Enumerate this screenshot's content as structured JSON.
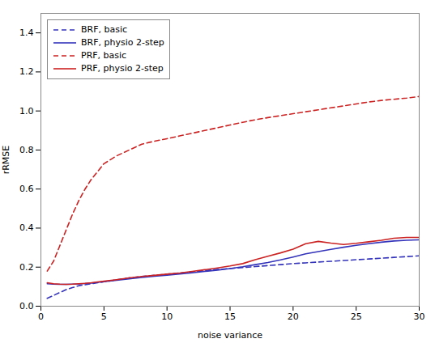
{
  "chart_data": {
    "type": "line",
    "x": [
      0.5,
      1,
      1.5,
      2,
      2.5,
      3,
      3.5,
      4,
      4.5,
      5,
      6,
      7,
      8,
      9,
      10,
      11,
      12,
      13,
      14,
      15,
      16,
      17,
      18,
      19,
      20,
      21,
      22,
      23,
      24,
      25,
      26,
      27,
      28,
      29,
      30
    ],
    "series": [
      {
        "name": "BRF, basic",
        "color": "#3333bb",
        "line_style": "dashed",
        "values": [
          0.04,
          0.055,
          0.07,
          0.085,
          0.095,
          0.105,
          0.11,
          0.115,
          0.12,
          0.125,
          0.135,
          0.145,
          0.152,
          0.158,
          0.164,
          0.17,
          0.176,
          0.182,
          0.188,
          0.193,
          0.198,
          0.203,
          0.208,
          0.213,
          0.218,
          0.222,
          0.226,
          0.23,
          0.234,
          0.238,
          0.242,
          0.246,
          0.25,
          0.254,
          0.258
        ]
      },
      {
        "name": "BRF, physio 2-step",
        "color": "#3333bb",
        "line_style": "solid",
        "values": [
          0.115,
          0.113,
          0.112,
          0.112,
          0.113,
          0.114,
          0.116,
          0.118,
          0.122,
          0.126,
          0.133,
          0.14,
          0.147,
          0.153,
          0.159,
          0.165,
          0.171,
          0.178,
          0.185,
          0.193,
          0.202,
          0.213,
          0.224,
          0.237,
          0.252,
          0.268,
          0.28,
          0.291,
          0.302,
          0.312,
          0.32,
          0.328,
          0.334,
          0.338,
          0.34
        ]
      },
      {
        "name": "PRF, basic",
        "color": "#cc2222",
        "line_style": "dashed",
        "values": [
          0.18,
          0.23,
          0.31,
          0.39,
          0.47,
          0.54,
          0.6,
          0.65,
          0.69,
          0.73,
          0.77,
          0.8,
          0.83,
          0.845,
          0.858,
          0.872,
          0.886,
          0.9,
          0.914,
          0.928,
          0.942,
          0.955,
          0.966,
          0.976,
          0.986,
          0.996,
          1.006,
          1.016,
          1.026,
          1.036,
          1.046,
          1.054,
          1.06,
          1.066,
          1.074
        ]
      },
      {
        "name": "PRF, physio 2-step",
        "color": "#cc2222",
        "line_style": "solid",
        "values": [
          0.12,
          0.115,
          0.113,
          0.112,
          0.113,
          0.115,
          0.117,
          0.12,
          0.124,
          0.128,
          0.136,
          0.145,
          0.152,
          0.158,
          0.164,
          0.17,
          0.178,
          0.187,
          0.196,
          0.206,
          0.218,
          0.238,
          0.256,
          0.273,
          0.292,
          0.32,
          0.332,
          0.323,
          0.316,
          0.322,
          0.33,
          0.338,
          0.348,
          0.352,
          0.352
        ]
      }
    ],
    "xlabel": "noise variance",
    "ylabel": "rRMSE",
    "xlim": [
      0,
      30
    ],
    "xticks": [
      0,
      5,
      10,
      15,
      20,
      25,
      30
    ],
    "ylim": [
      0.0,
      1.5
    ],
    "yticks": [
      {
        "value": 0.0,
        "label": "0.0"
      },
      0.2,
      0.4,
      0.6,
      0.8,
      {
        "value": 1.0,
        "label": "1.0"
      },
      1.2,
      1.4
    ],
    "grid": false,
    "legend": "upper left"
  }
}
